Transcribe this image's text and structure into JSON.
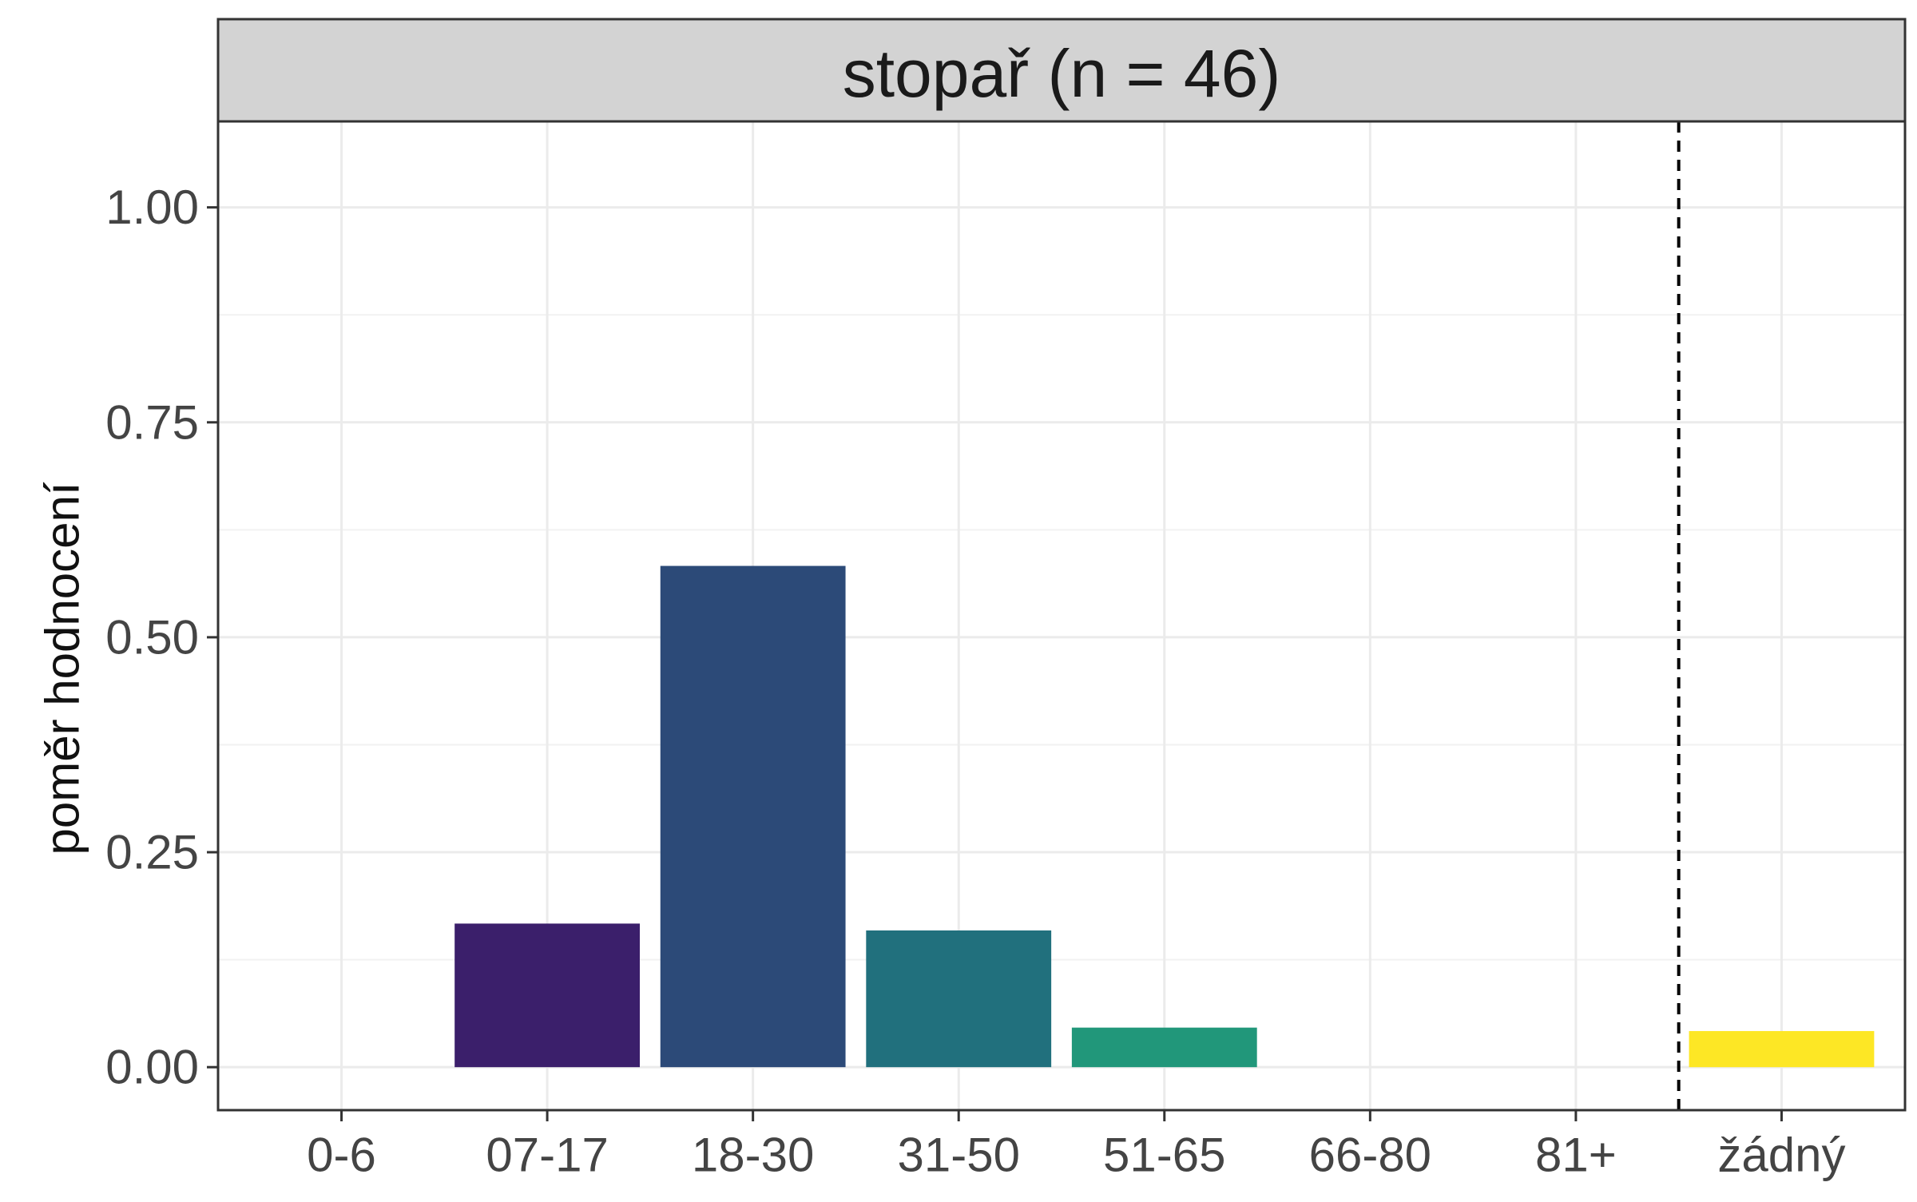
{
  "chart_data": {
    "type": "bar",
    "title": "stopař (n = 46)",
    "xlabel": "",
    "ylabel": "poměr hodnocení",
    "categories": [
      "0-6",
      "07-17",
      "18-30",
      "31-50",
      "51-65",
      "66-80",
      "81+",
      "žádný"
    ],
    "values": [
      0,
      0.167,
      0.583,
      0.159,
      0.046,
      0,
      0,
      0.042
    ],
    "colors": [
      "#440154",
      "#3B1F6B",
      "#2C4A78",
      "#21707D",
      "#21977A",
      "#5DC863",
      "#AADC32",
      "#FDE725"
    ],
    "ylim": [
      -0.05,
      1.1
    ],
    "yticks": [
      0,
      0.25,
      0.5,
      0.75,
      1.0
    ],
    "ytick_labels": [
      "0.00",
      "0.25",
      "0.50",
      "0.75",
      "1.00"
    ],
    "separator_after_category": "81+",
    "grid": true,
    "theme": "bw"
  }
}
